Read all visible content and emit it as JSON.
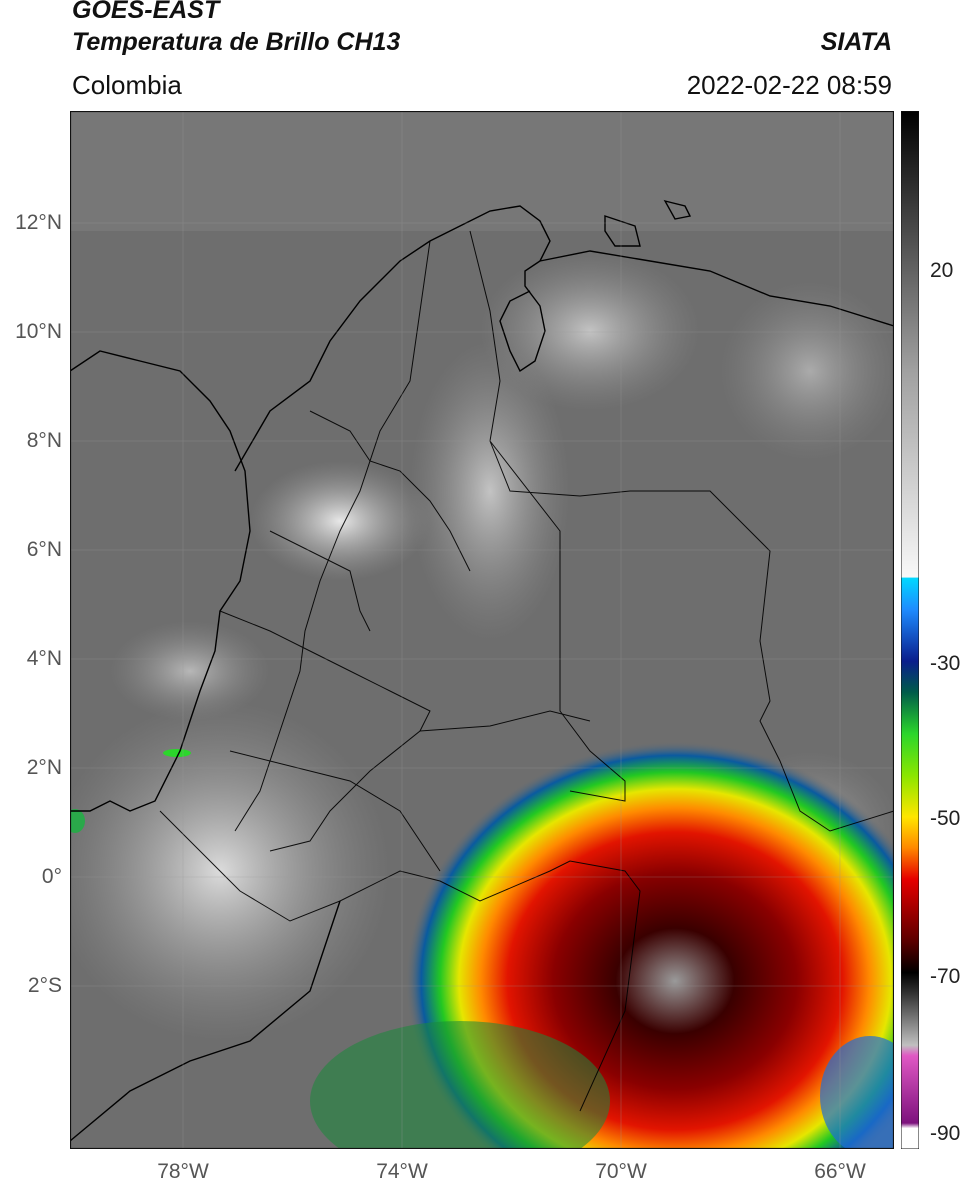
{
  "header": {
    "satellite": "GOES-EAST",
    "product": "Temperatura de Brillo CH13",
    "agency": "SIATA",
    "region": "Colombia",
    "datetime": "2022-02-22 08:59"
  },
  "map": {
    "lat_labels": [
      "12°N",
      "10°N",
      "8°N",
      "6°N",
      "4°N",
      "2°N",
      "0°",
      "2°S"
    ],
    "lon_labels": [
      "78°W",
      "74°W",
      "70°W",
      "66°W"
    ]
  },
  "colorbar": {
    "labels": [
      "20",
      "-30",
      "-50",
      "-70",
      "-90"
    ],
    "stops": [
      "#ffffff",
      "#7d127d",
      "#e058c4",
      "#a8a8a8",
      "#000000",
      "#5a0000",
      "#e60000",
      "#ff8800",
      "#ffe600",
      "#2bd62b",
      "#005c4a",
      "#0a1e8c",
      "#1e8cff",
      "#00d8ff",
      "#f2f2f2",
      "#000000"
    ]
  },
  "colors": {
    "cloud_core": "#6a0000",
    "cold_ring": "#e61a00",
    "background_gray": "#6e6e6e",
    "land_lines": "#000000"
  }
}
